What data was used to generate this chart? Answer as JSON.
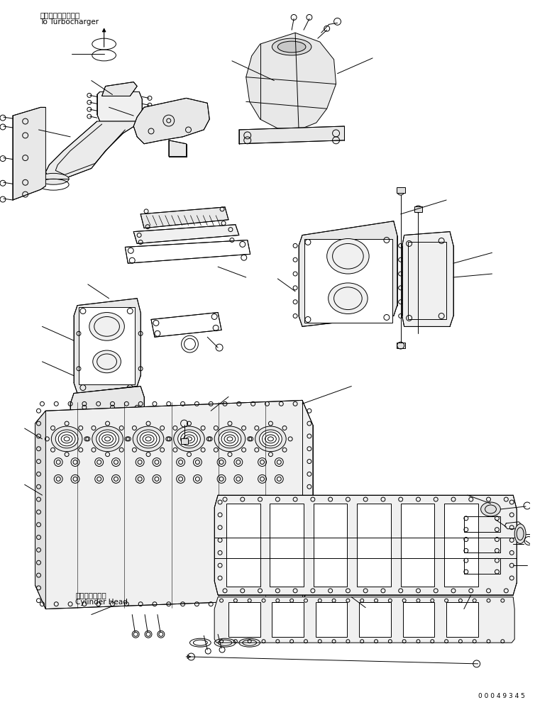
{
  "background_color": "#ffffff",
  "fig_width": 7.54,
  "fig_height": 9.94,
  "dpi": 100,
  "label_turbo_ja": "ターボチャージャヘ",
  "label_turbo_en": "To Turbocharger",
  "label_cyl_ja": "シリンダヘッド",
  "label_cyl_en": "Cylinder Head",
  "label_partno": "0 0 0 4 9 3 4 5",
  "lc": "#000000",
  "lw": 0.7
}
